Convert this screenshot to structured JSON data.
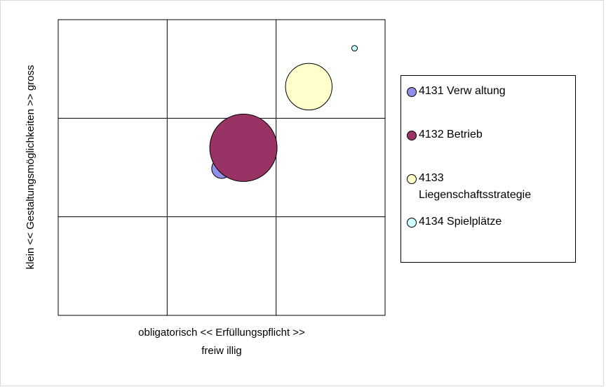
{
  "chart_data": {
    "type": "bubble",
    "x_label": [
      "obligatorisch <<  Erfüllungspflicht  >>",
      "freiw illig"
    ],
    "y_label": "klein << Gestaltungsmöglichkeiten >> gross",
    "xlim": [
      0,
      3
    ],
    "ylim": [
      0,
      3
    ],
    "xticks": [
      1,
      2
    ],
    "yticks": [
      1,
      2
    ],
    "grid": true,
    "series": [
      {
        "name": "4131 Verw altung",
        "color": "#9090e8",
        "x": [
          1.5
        ],
        "values": [
          1.49
        ],
        "sizes": [
          20
        ]
      },
      {
        "name": "4132 Betrieb",
        "color": "#993366",
        "x": [
          1.7
        ],
        "values": [
          1.7
        ],
        "sizes": [
          230
        ]
      },
      {
        "name": "4133 Liegenschaftsstrategie",
        "color": "#ffffcc",
        "x": [
          2.3
        ],
        "values": [
          2.32
        ],
        "sizes": [
          110
        ]
      },
      {
        "name": "4134 Spielplätze",
        "color": "#ccffff",
        "x": [
          2.72
        ],
        "values": [
          2.71
        ],
        "sizes": [
          1.6
        ]
      }
    ]
  }
}
